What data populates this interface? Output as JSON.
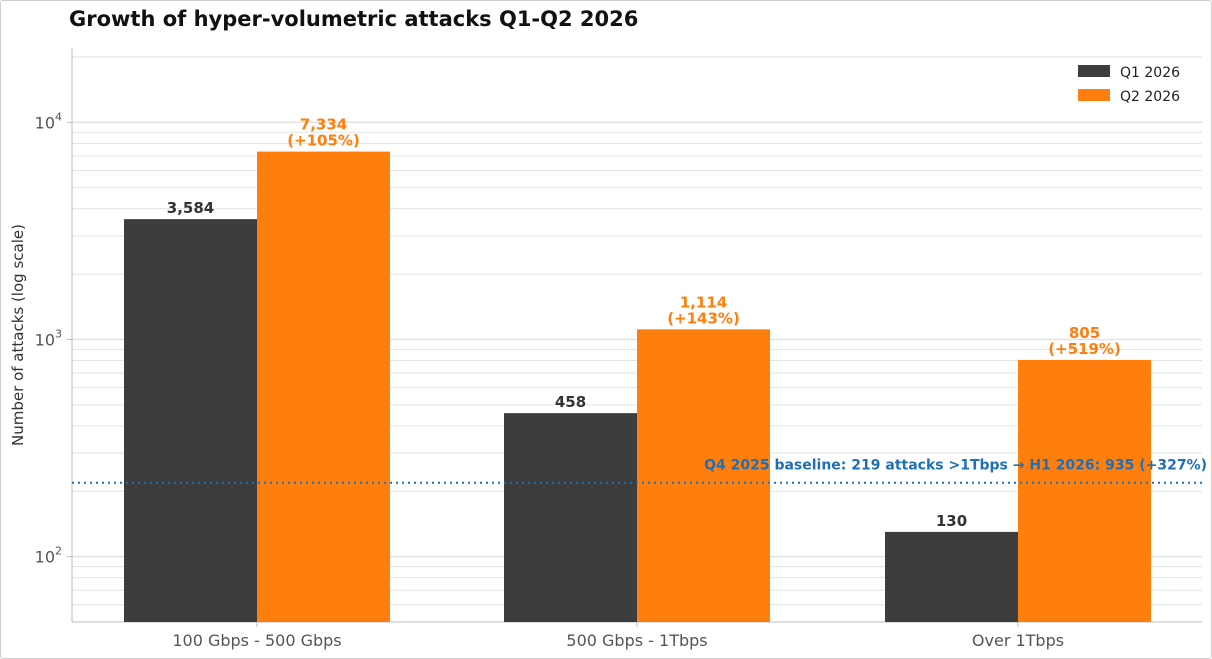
{
  "colors": {
    "q1": "#3d3d3d",
    "q2": "#ff7f0e",
    "baseline": "#1f6fb4",
    "grid": "#e3e3e3",
    "axis": "#bdbdbd"
  },
  "chart_data": {
    "type": "bar",
    "title": "Growth of hyper-volumetric attacks Q1-Q2 2026",
    "ylabel": "Number of attacks (log scale)",
    "xlabel": "",
    "yscale": "log",
    "ylim": [
      50,
      22000
    ],
    "yticks": [
      {
        "value": 100,
        "base": "10",
        "exp": "2"
      },
      {
        "value": 1000,
        "base": "10",
        "exp": "3"
      },
      {
        "value": 10000,
        "base": "10",
        "exp": "4"
      }
    ],
    "grid": true,
    "legend_position": "top-right",
    "categories": [
      "100 Gbps - 500 Gbps",
      "500 Gbps - 1Tbps",
      "Over 1Tbps"
    ],
    "series": [
      {
        "name": "Q1 2026",
        "color": "#3d3d3d",
        "values": [
          3584,
          458,
          130
        ],
        "labels": [
          [
            "3,584"
          ],
          [
            "458"
          ],
          [
            "130"
          ]
        ]
      },
      {
        "name": "Q2 2026",
        "color": "#ff7f0e",
        "values": [
          7334,
          1114,
          805
        ],
        "labels": [
          [
            "7,334",
            "(+105%)"
          ],
          [
            "1,114",
            "(+143%)"
          ],
          [
            "805",
            "(+519%)"
          ]
        ]
      }
    ],
    "reference_line": {
      "value": 219,
      "style": "dotted",
      "label": "Q4 2025 baseline: 219 attacks >1Tbps → H1 2026: 935 (+327%)"
    }
  }
}
